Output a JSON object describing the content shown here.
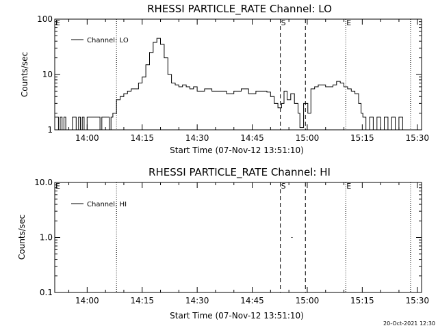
{
  "chart_data": [
    {
      "type": "line",
      "title": "RHESSI PARTICLE_RATE Channel: LO",
      "xlabel": "Start Time (07-Nov-12 13:51:10)",
      "ylabel": "Counts/sec",
      "yscale": "log",
      "ylim": [
        1,
        100
      ],
      "xlim": [
        "13:51:10",
        "15:31:10"
      ],
      "xticks": [
        "14:00",
        "14:15",
        "14:30",
        "14:45",
        "15:00",
        "15:15",
        "15:30"
      ],
      "yticks": [
        "1",
        "10",
        "100"
      ],
      "legend": "top-left",
      "series": [
        {
          "name": "Channel: LO",
          "x": [
            "13:51:10",
            "13:52:10",
            "13:52:40",
            "13:53:10",
            "13:53:40",
            "13:54:10",
            "13:56:00",
            "13:57:00",
            "13:57:40",
            "13:58:10",
            "13:58:40",
            "13:59:10",
            "14:00:00",
            "14:03:00",
            "14:03:30",
            "14:04:00",
            "14:05:00",
            "14:06:00",
            "14:06:30",
            "14:07:00",
            "14:08:00",
            "14:09:00",
            "14:10:00",
            "14:11:00",
            "14:12:00",
            "14:13:00",
            "14:14:00",
            "14:15:00",
            "14:16:00",
            "14:17:00",
            "14:18:00",
            "14:19:00",
            "14:20:00",
            "14:21:00",
            "14:22:00",
            "14:23:00",
            "14:24:00",
            "14:25:00",
            "14:26:00",
            "14:27:00",
            "14:28:00",
            "14:29:00",
            "14:30:00",
            "14:32:00",
            "14:34:00",
            "14:36:00",
            "14:38:00",
            "14:40:00",
            "14:42:00",
            "14:44:00",
            "14:46:00",
            "14:48:00",
            "14:49:00",
            "14:50:00",
            "14:51:00",
            "14:52:00",
            "14:53:00",
            "14:53:40",
            "14:54:30",
            "14:55:30",
            "14:56:30",
            "14:57:30",
            "14:58:00",
            "14:59:00",
            "14:59:40",
            "15:00:10",
            "15:01:00",
            "15:02:00",
            "15:03:00",
            "15:05:00",
            "15:07:00",
            "15:08:00",
            "15:09:00",
            "15:10:00",
            "15:11:00",
            "15:12:00",
            "15:13:00",
            "15:14:00",
            "15:14:40",
            "15:15:10",
            "15:16:00",
            "15:17:00",
            "15:18:00",
            "15:19:00",
            "15:20:00",
            "15:21:00",
            "15:22:00",
            "15:23:00",
            "15:24:00",
            "15:25:00",
            "15:26:00"
          ],
          "values": [
            1.7,
            1,
            1.7,
            1,
            1.7,
            1,
            1.7,
            1,
            1.7,
            1,
            1.7,
            1,
            1.7,
            1.7,
            1,
            1.7,
            1.7,
            1,
            1.7,
            2,
            3.5,
            4,
            4.5,
            5,
            5.5,
            5.5,
            7,
            9,
            15,
            25,
            38,
            45,
            35,
            20,
            10,
            7,
            6.5,
            6,
            6.5,
            6,
            5.5,
            6,
            5,
            5.5,
            5,
            5,
            4.5,
            5,
            5.5,
            4.5,
            5,
            5,
            4.8,
            4,
            3,
            2.5,
            3,
            5,
            3.5,
            4.5,
            3,
            2,
            1.1,
            3,
            3,
            2,
            5.5,
            6,
            6.5,
            6,
            6.5,
            7.5,
            7,
            6,
            5.5,
            5,
            4.5,
            3,
            2,
            1.7,
            1,
            1.7,
            1,
            1.7,
            1,
            1.7,
            1,
            1.7,
            1,
            1.7,
            1
          ]
        }
      ],
      "markers": [
        {
          "label": "E",
          "time": "13:51:10",
          "style": "dotted"
        },
        {
          "label": "",
          "time": "14:08:00",
          "style": "dotted"
        },
        {
          "label": "S",
          "time": "14:52:40",
          "style": "dashed"
        },
        {
          "label": "",
          "time": "14:59:30",
          "style": "dashed"
        },
        {
          "label": "E",
          "time": "15:10:30",
          "style": "dotted"
        },
        {
          "label": "",
          "time": "15:28:10",
          "style": "dotted"
        }
      ]
    },
    {
      "type": "line",
      "title": "RHESSI PARTICLE_RATE Channel: HI",
      "xlabel": "Start Time (07-Nov-12 13:51:10)",
      "ylabel": "Counts/sec",
      "yscale": "log",
      "ylim": [
        0.1,
        10
      ],
      "xlim": [
        "13:51:10",
        "15:31:10"
      ],
      "xticks": [
        "14:00",
        "14:15",
        "14:30",
        "14:45",
        "15:00",
        "15:15",
        "15:30"
      ],
      "yticks": [
        "0.1",
        "1.0",
        "10.0"
      ],
      "legend": "top-left",
      "series": [
        {
          "name": "Channel: HI",
          "x": [
            "14:55:40",
            "14:56:00"
          ],
          "values": [
            1.0,
            1.0
          ]
        }
      ],
      "markers": [
        {
          "label": "E",
          "time": "13:51:10",
          "style": "dotted"
        },
        {
          "label": "",
          "time": "14:08:00",
          "style": "dotted"
        },
        {
          "label": "S",
          "time": "14:52:40",
          "style": "dashed"
        },
        {
          "label": "",
          "time": "14:59:30",
          "style": "dashed"
        },
        {
          "label": "E",
          "time": "15:10:30",
          "style": "dotted"
        },
        {
          "label": "",
          "time": "15:28:10",
          "style": "dotted"
        }
      ]
    }
  ],
  "timestamp": "20-Oct-2021 12:30"
}
